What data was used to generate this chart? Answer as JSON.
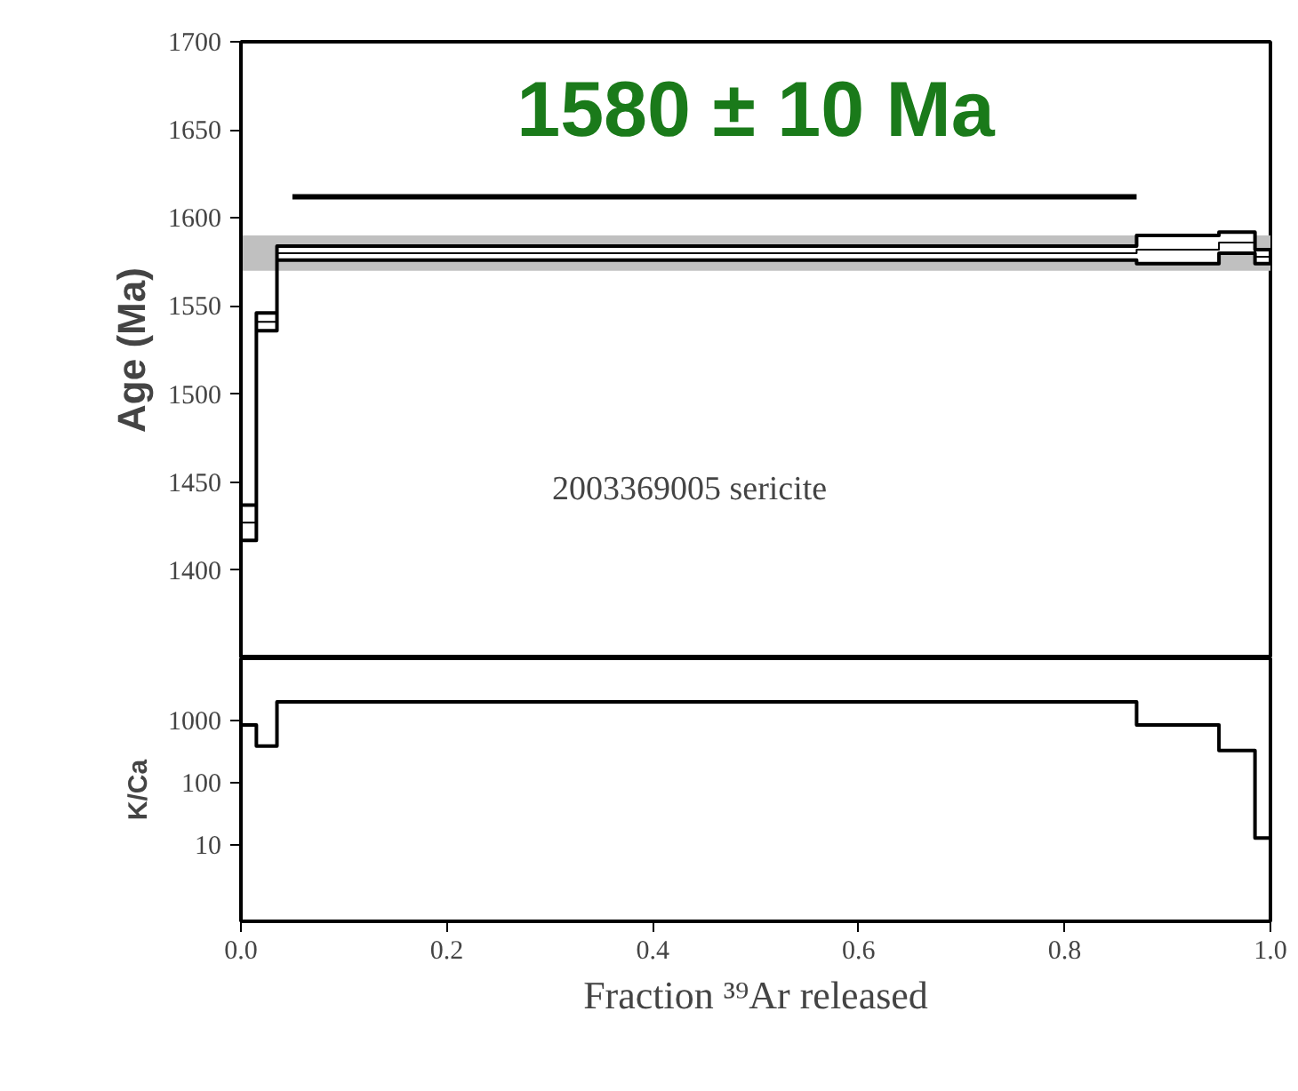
{
  "chart_data": [
    {
      "type": "step",
      "title": "1580 ± 10 Ma",
      "ylabel": "Age (Ma)",
      "annotations": [
        "2003369005 sericite"
      ],
      "series": [
        {
          "color": "#000000",
          "x": [
            0.0,
            0.015,
            0.035,
            0.87,
            0.95,
            0.985,
            1.0
          ],
          "values": [
            1427,
            1541,
            1580,
            1582,
            1586,
            1578,
            1578
          ],
          "lower": [
            1417,
            1536,
            1576,
            1574,
            1580,
            1574,
            1574
          ],
          "upper": [
            1437,
            1546,
            1584,
            1590,
            1592,
            1582,
            1582
          ]
        },
        {
          "type": "line",
          "color": "#000000",
          "x": [
            0.05,
            0.87
          ],
          "values": [
            1612,
            1612
          ]
        }
      ],
      "bands": [
        {
          "axis": "y",
          "from": 1570,
          "to": 1590,
          "color": "#c0c0c0"
        }
      ],
      "xlim": [
        0,
        1
      ],
      "ylim": [
        1350,
        1700
      ],
      "xticks": [
        0,
        0.2,
        0.4,
        0.6,
        0.8,
        1.0
      ],
      "yticks": [
        1400,
        1450,
        1500,
        1550,
        1600,
        1650,
        1700
      ],
      "tick_labels": "y",
      "grid": false
    },
    {
      "type": "step",
      "xlabel": "Fraction ³⁹Ar released",
      "ylabel": "K/Ca",
      "log": "y",
      "series": [
        {
          "color": "#000000",
          "x": [
            0.0,
            0.015,
            0.035,
            0.87,
            0.95,
            0.985,
            1.0
          ],
          "values": [
            850,
            390,
            2000,
            850,
            330,
            13,
            13
          ]
        }
      ],
      "xlim": [
        0,
        1
      ],
      "ylim": [
        0.6,
        10000
      ],
      "xticks": [
        {
          "value": 0,
          "label": "0.0"
        },
        0.2,
        0.4,
        0.6,
        0.8,
        {
          "value": 1,
          "label": "1.0"
        }
      ],
      "yticks": [
        10,
        100,
        1000
      ],
      "grid": false
    }
  ]
}
